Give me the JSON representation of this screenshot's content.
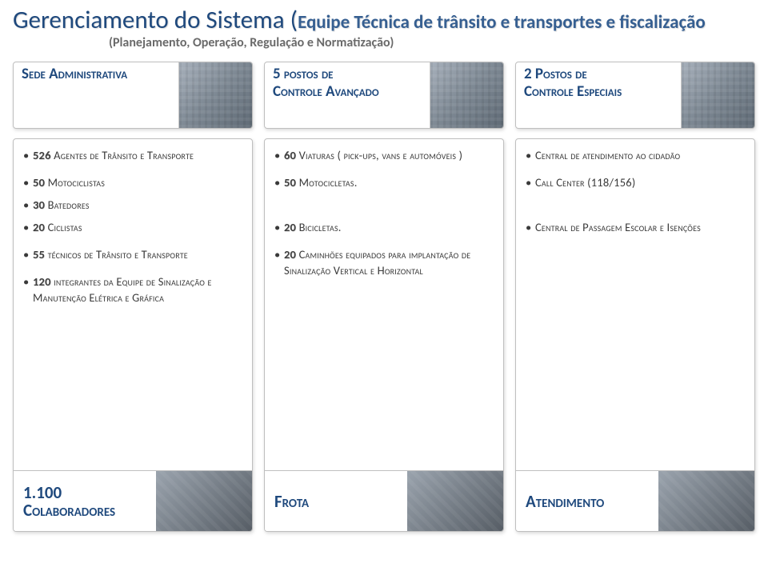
{
  "title": {
    "main": "Gerenciamento do Sistema (",
    "sub": "Equipe Técnica de trânsito e transportes e fiscalização",
    "planning": "(Planejamento, Operação, Regulação e Normatização)"
  },
  "top_cards": [
    {
      "label": "Sede Administrativa"
    },
    {
      "label": "5 postos de\nControle Avançado"
    },
    {
      "label": "2 Postos de\nControle Especiais"
    }
  ],
  "columns": [
    {
      "footer": "1.100\nColaboradores",
      "groups": [
        [
          {
            "num": "526",
            "text": " Agentes de Trânsito e Transporte"
          }
        ],
        [
          {
            "num": "50",
            "text": " Motociclistas"
          },
          {
            "num": "30",
            "text": " Batedores"
          },
          {
            "num": "20",
            "text": " Ciclistas"
          }
        ],
        [
          {
            "num": "55",
            "text": " técnicos de Trânsito e Transporte"
          }
        ],
        [
          {
            "num": "120",
            "text": " integrantes da Equipe de Sinalização e Manutenção Elétrica e Gráfica"
          }
        ]
      ]
    },
    {
      "footer": "Frota",
      "groups": [
        [
          {
            "num": "60",
            "text": " Viaturas ( pick-ups, vans e automóveis )"
          }
        ],
        [
          {
            "num": "50",
            "text": " Motocicletas."
          },
          {
            "num": "",
            "text": ""
          },
          {
            "num": "20",
            "text": " Bicicletas."
          }
        ],
        [
          {
            "num": "20",
            "text": " Caminhões equipados para implantação de Sinalização Vertical e Horizontal"
          }
        ]
      ]
    },
    {
      "footer": "Atendimento",
      "groups": [
        [
          {
            "num": "",
            "text": "Central de atendimento ao cidadão"
          }
        ],
        [
          {
            "num": "",
            "text": "Call Center (118/156)"
          },
          {
            "num": "",
            "text": ""
          },
          {
            "num": "",
            "text": "Central de Passagem Escolar e Isenções"
          }
        ]
      ]
    }
  ],
  "colors": {
    "heading": "#1f497d",
    "subheading": "#365f91",
    "body_text": "#3a3a3a",
    "card_border": "#bfbfbf",
    "background": "#ffffff"
  }
}
